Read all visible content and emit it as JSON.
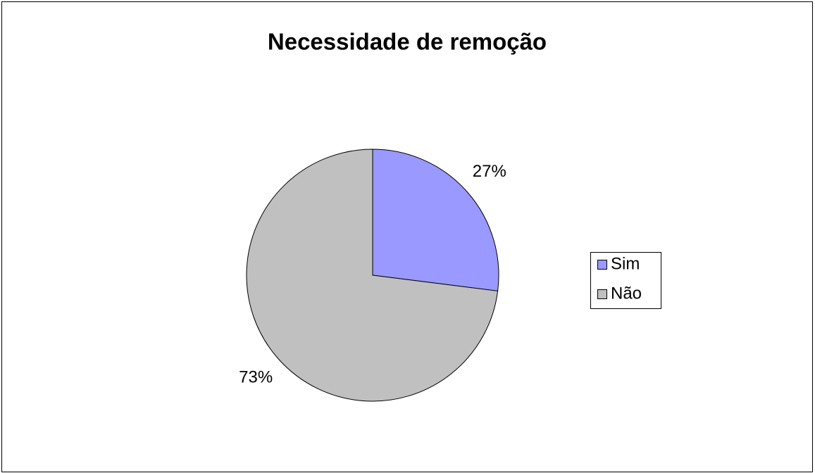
{
  "chart_data": {
    "type": "pie",
    "title": "Necessidade de remoção",
    "categories": [
      "Sim",
      "Não"
    ],
    "values": [
      27,
      73
    ],
    "value_labels": [
      "27%",
      "73%"
    ],
    "colors": [
      "#9999ff",
      "#c0c0c0"
    ],
    "legend": "right"
  }
}
